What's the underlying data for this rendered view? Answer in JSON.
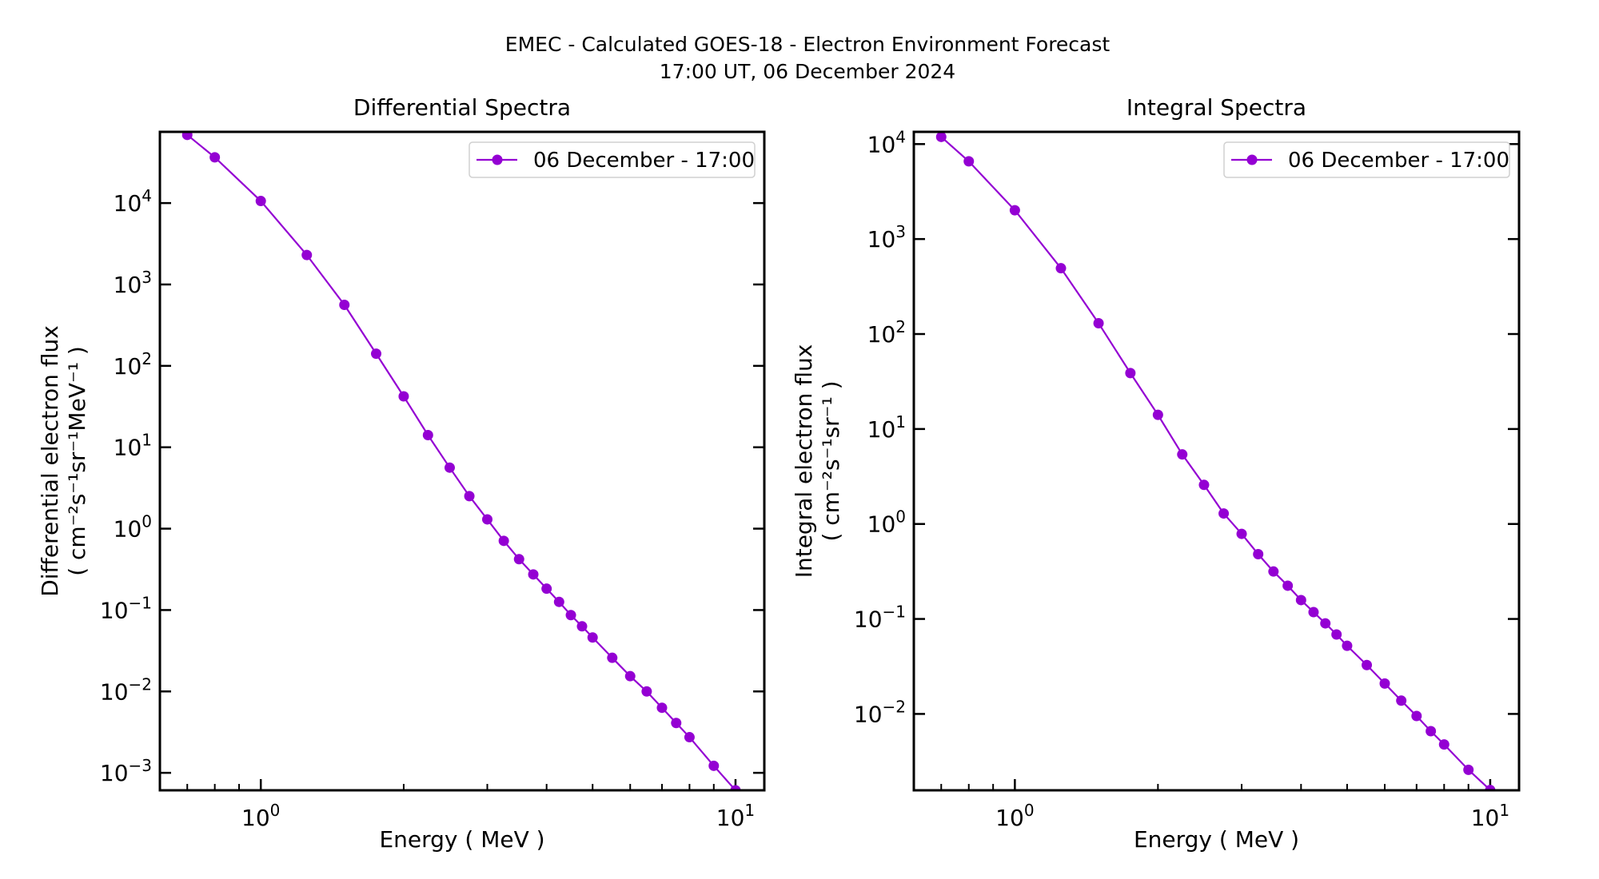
{
  "figure": {
    "title_line1": "EMEC - Calculated GOES-18 - Electron Environment Forecast",
    "title_line2": "17:00 UT, 06 December 2024",
    "series_color": "#9400D3"
  },
  "chart_data": [
    {
      "type": "line",
      "title": "Differential Spectra",
      "xlabel": "Energy ( MeV )",
      "ylabel_line1": "Differential electron flux",
      "ylabel_line2": "( cm⁻²s⁻¹sr⁻¹MeV⁻¹ )",
      "xscale": "log",
      "yscale": "log",
      "xlim": [
        0.613,
        11.5
      ],
      "ylim": [
        0.00061,
        75000
      ],
      "x_ticks": [
        {
          "value": 1,
          "label": "10",
          "exp": "0"
        },
        {
          "value": 10,
          "label": "10",
          "exp": "1"
        }
      ],
      "y_ticks": [
        {
          "value": 0.001,
          "label": "10",
          "exp": "−3"
        },
        {
          "value": 0.01,
          "label": "10",
          "exp": "−2"
        },
        {
          "value": 0.1,
          "label": "10",
          "exp": "−1"
        },
        {
          "value": 1,
          "label": "10",
          "exp": "0"
        },
        {
          "value": 10,
          "label": "10",
          "exp": "1"
        },
        {
          "value": 100,
          "label": "10",
          "exp": "2"
        },
        {
          "value": 1000,
          "label": "10",
          "exp": "3"
        },
        {
          "value": 10000,
          "label": "10",
          "exp": "4"
        }
      ],
      "legend": {
        "position": "upper right",
        "entries": [
          "06 December - 17:00"
        ]
      },
      "grid": false,
      "series": [
        {
          "name": "06 December - 17:00",
          "x": [
            0.7,
            0.8,
            1.0,
            1.25,
            1.5,
            1.75,
            2.0,
            2.25,
            2.5,
            2.75,
            3.0,
            3.25,
            3.5,
            3.75,
            4.0,
            4.25,
            4.5,
            4.75,
            5.0,
            5.5,
            6.0,
            6.5,
            7.0,
            7.5,
            8.0,
            9.0,
            10.0
          ],
          "y": [
            68800,
            36500,
            10600,
            2300,
            562,
            141,
            42.2,
            14.1,
            5.62,
            2.51,
            1.3,
            0.708,
            0.422,
            0.274,
            0.183,
            0.126,
            0.0866,
            0.0631,
            0.046,
            0.0259,
            0.0154,
            0.01,
            0.0063,
            0.0041,
            0.00274,
            0.00122,
            0.00061
          ]
        }
      ]
    },
    {
      "type": "line",
      "title": "Integral Spectra",
      "xlabel": "Energy ( MeV )",
      "ylabel_line1": "Integral electron flux",
      "ylabel_line2": "( cm⁻²s⁻¹sr⁻¹ )",
      "xscale": "log",
      "yscale": "log",
      "xlim": [
        0.613,
        11.5
      ],
      "ylim": [
        0.00157,
        13450
      ],
      "x_ticks": [
        {
          "value": 1,
          "label": "10",
          "exp": "0"
        },
        {
          "value": 10,
          "label": "10",
          "exp": "1"
        }
      ],
      "y_ticks": [
        {
          "value": 0.01,
          "label": "10",
          "exp": "−2"
        },
        {
          "value": 0.1,
          "label": "10",
          "exp": "−1"
        },
        {
          "value": 1,
          "label": "10",
          "exp": "0"
        },
        {
          "value": 10,
          "label": "10",
          "exp": "1"
        },
        {
          "value": 100,
          "label": "10",
          "exp": "2"
        },
        {
          "value": 1000,
          "label": "10",
          "exp": "3"
        },
        {
          "value": 10000,
          "label": "10",
          "exp": "4"
        }
      ],
      "legend": {
        "position": "upper right",
        "entries": [
          "06 December - 17:00"
        ]
      },
      "grid": false,
      "series": [
        {
          "name": "06 December - 17:00",
          "x": [
            0.7,
            0.8,
            1.0,
            1.25,
            1.5,
            1.75,
            2.0,
            2.25,
            2.5,
            2.75,
            3.0,
            3.25,
            3.5,
            3.75,
            4.0,
            4.25,
            4.5,
            4.75,
            5.0,
            5.5,
            6.0,
            6.5,
            7.0,
            7.5,
            8.0,
            9.0,
            10.0
          ],
          "y": [
            11900,
            6580,
            2010,
            493,
            130,
            38.8,
            14.1,
            5.4,
            2.58,
            1.29,
            0.787,
            0.481,
            0.316,
            0.224,
            0.158,
            0.118,
            0.0899,
            0.0686,
            0.0522,
            0.0327,
            0.0209,
            0.0138,
            0.00952,
            0.00658,
            0.00477,
            0.00258,
            0.00158
          ]
        }
      ]
    }
  ]
}
